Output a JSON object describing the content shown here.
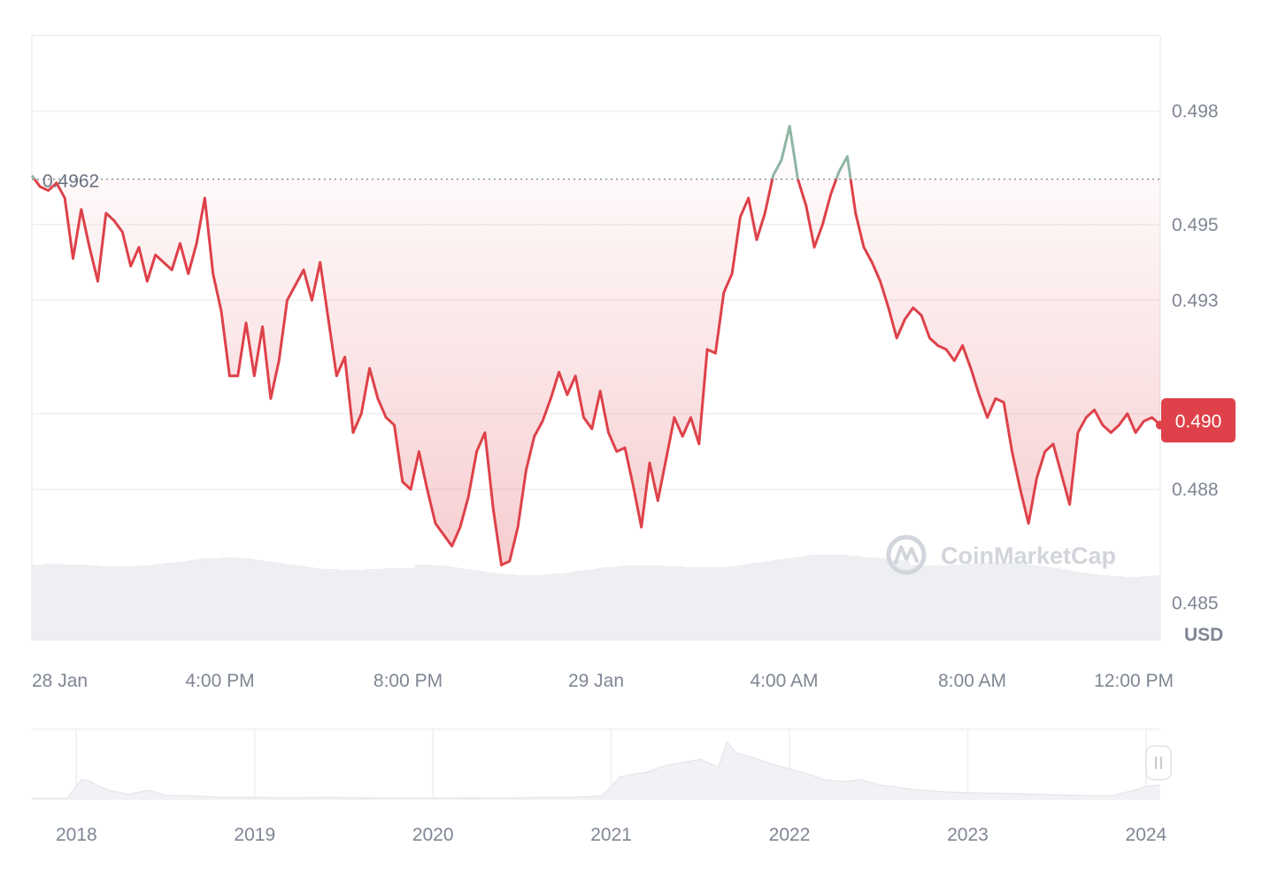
{
  "chart_data": {
    "type": "line",
    "currency": "USD",
    "yticks": [
      0.485,
      0.488,
      0.49,
      0.493,
      0.495,
      0.498
    ],
    "ytick_labels": [
      "0.485",
      "0.488",
      "0.490",
      "0.493",
      "0.495",
      "0.498"
    ],
    "ylim": [
      0.484,
      0.5
    ],
    "xlim": [
      0,
      24
    ],
    "xticks": [
      {
        "label": "28 Jan",
        "hours": 0
      },
      {
        "label": "4:00 PM",
        "hours": 4
      },
      {
        "label": "8:00 PM",
        "hours": 8
      },
      {
        "label": "29 Jan",
        "hours": 12
      },
      {
        "label": "4:00 AM",
        "hours": 16
      },
      {
        "label": "8:00 AM",
        "hours": 20
      },
      {
        "label": "12:00 PM",
        "hours": 24
      }
    ],
    "reference": {
      "value": 0.4962,
      "label": "0.4962"
    },
    "current_price_label": "0.490",
    "current_price": 0.4898,
    "colors": {
      "down": "#de4149",
      "up": "#8fb5a4",
      "tag": "#de4149",
      "grid": "#efefef",
      "volume": "#eeeff3"
    },
    "series": [
      {
        "values": [
          0.4963,
          0.496,
          0.4959,
          0.4961,
          0.4957,
          0.4941,
          0.4954,
          0.4944,
          0.4935,
          0.4953,
          0.4951,
          0.4948,
          0.4939,
          0.4944,
          0.4935,
          0.4942,
          0.494,
          0.4938,
          0.4945,
          0.4937,
          0.4945,
          0.4957,
          0.4937,
          0.4927,
          0.491,
          0.491,
          0.4924,
          0.491,
          0.4923,
          0.4904,
          0.4914,
          0.493,
          0.4934,
          0.4938,
          0.493,
          0.494,
          0.4925,
          0.491,
          0.4915,
          0.4895,
          0.49,
          0.4912,
          0.4904,
          0.4899,
          0.4897,
          0.4882,
          0.488,
          0.489,
          0.488,
          0.4871,
          0.4868,
          0.4865,
          0.487,
          0.4878,
          0.489,
          0.4895,
          0.4875,
          0.486,
          0.4861,
          0.487,
          0.4885,
          0.4894,
          0.4898,
          0.4904,
          0.4911,
          0.4905,
          0.491,
          0.4899,
          0.4896,
          0.4906,
          0.4895,
          0.489,
          0.4891,
          0.4881,
          0.487,
          0.4887,
          0.4877,
          0.4888,
          0.4899,
          0.4894,
          0.4899,
          0.4892,
          0.4917,
          0.4916,
          0.4932,
          0.4937,
          0.4952,
          0.4957,
          0.4946,
          0.4953,
          0.4963,
          0.4967,
          0.4976,
          0.4962,
          0.4955,
          0.4944,
          0.495,
          0.4958,
          0.4964,
          0.4968,
          0.4953,
          0.4944,
          0.494,
          0.4935,
          0.4928,
          0.492,
          0.4925,
          0.4928,
          0.4926,
          0.492,
          0.4918,
          0.4917,
          0.4914,
          0.4918,
          0.4912,
          0.4905,
          0.4899,
          0.4904,
          0.4903,
          0.489,
          0.488,
          0.4871,
          0.4883,
          0.489,
          0.4892,
          0.4884,
          0.4876,
          0.4895,
          0.4899,
          0.4901,
          0.4897,
          0.4895,
          0.4897,
          0.49,
          0.4895,
          0.4898,
          0.4899,
          0.4897
        ]
      }
    ],
    "navigator": {
      "years": [
        "2018",
        "2019",
        "2020",
        "2021",
        "2022",
        "2023",
        "2024"
      ],
      "start_year": 2017.75,
      "end_year": 2024.08,
      "ylim": [
        0,
        2.2
      ],
      "x": [
        2017.75,
        2017.95,
        2018.0,
        2018.03,
        2018.08,
        2018.12,
        2018.2,
        2018.3,
        2018.4,
        2018.5,
        2018.65,
        2018.8,
        2019.0,
        2019.2,
        2019.4,
        2019.6,
        2019.8,
        2020.0,
        2020.2,
        2020.4,
        2020.6,
        2020.8,
        2020.95,
        2021.05,
        2021.1,
        2021.2,
        2021.3,
        2021.4,
        2021.5,
        2021.6,
        2021.65,
        2021.7,
        2021.8,
        2021.9,
        2022.0,
        2022.1,
        2022.2,
        2022.3,
        2022.4,
        2022.5,
        2022.6,
        2022.7,
        2022.8,
        2022.9,
        2023.0,
        2023.2,
        2023.4,
        2023.6,
        2023.8,
        2023.95,
        2024.0,
        2024.08
      ],
      "y": [
        0.02,
        0.03,
        0.4,
        0.62,
        0.55,
        0.42,
        0.25,
        0.15,
        0.28,
        0.12,
        0.1,
        0.06,
        0.05,
        0.04,
        0.05,
        0.04,
        0.03,
        0.03,
        0.04,
        0.03,
        0.05,
        0.06,
        0.1,
        0.7,
        0.76,
        0.85,
        1.05,
        1.15,
        1.25,
        1.0,
        1.8,
        1.45,
        1.3,
        1.1,
        0.95,
        0.8,
        0.6,
        0.55,
        0.62,
        0.45,
        0.38,
        0.3,
        0.25,
        0.22,
        0.2,
        0.18,
        0.15,
        0.12,
        0.1,
        0.3,
        0.4,
        0.45
      ]
    },
    "watermark": "CoinMarketCap"
  }
}
